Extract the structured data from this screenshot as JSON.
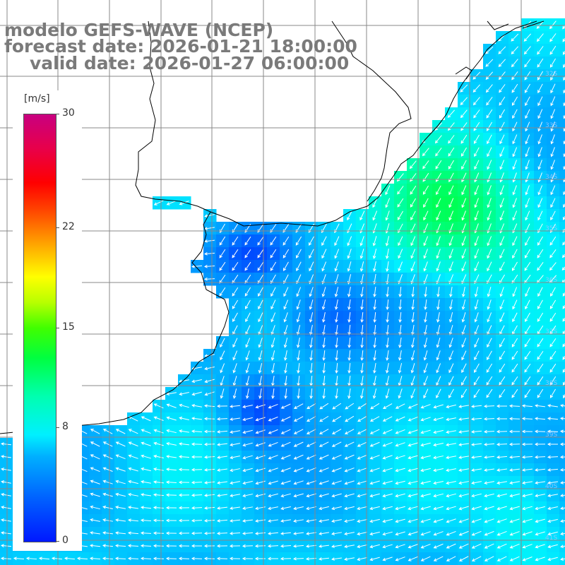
{
  "title": {
    "line1": "modelo GEFS-WAVE (NCEP)",
    "line2": "forecast date: 2026-01-21 18:00:00",
    "line3": "valid date: 2026-01-27 06:00:00"
  },
  "colorbar": {
    "unit": "[m/s]",
    "min": 0,
    "max": 30,
    "ticks": [
      {
        "value": 30,
        "label": "30"
      },
      {
        "value": 22,
        "label": "22"
      },
      {
        "value": 15,
        "label": "15"
      },
      {
        "value": 8,
        "label": "8"
      },
      {
        "value": 0,
        "label": "0"
      }
    ],
    "stops": [
      "#0018ff",
      "#00f0ff",
      "#00ff40",
      "#ffff00",
      "#ff0000",
      "#c80080"
    ]
  },
  "map": {
    "lat_labels": [
      "32S",
      "33S",
      "34S",
      "35S",
      "36S",
      "37S",
      "38S",
      "39S",
      "40S",
      "41S"
    ],
    "land_color": "#ffffff",
    "coast_color": "#000000",
    "grid_color": "#888888",
    "arrow_color": "#ffffff"
  }
}
